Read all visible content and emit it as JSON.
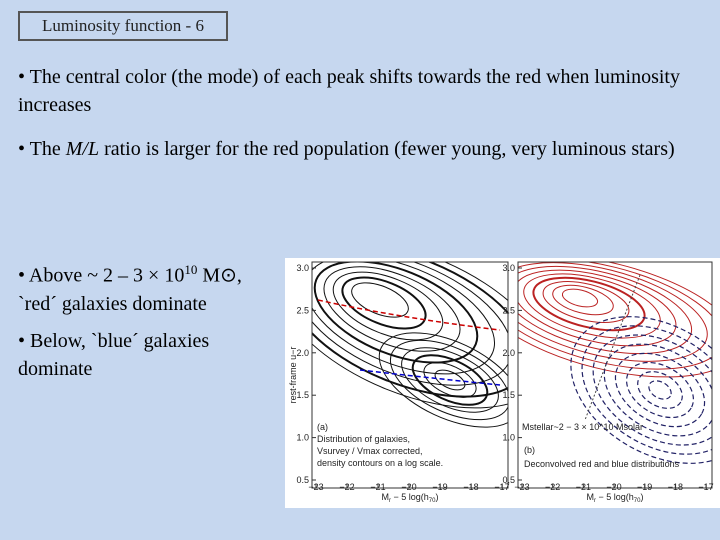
{
  "title": "Luminosity function - 6",
  "bullets": [
    {
      "text": "• The central color (the mode) of each peak shifts towards the red when luminosity increases"
    },
    {
      "before": "• The ",
      "italic": "M/L",
      "after": " ratio is larger for the red population (fewer young, very luminous stars)"
    },
    {
      "before": "• Above ~ 2 – 3 × 10",
      "sup": "10",
      "after": " M⊙,",
      "line2": "`red´ galaxies dominate"
    },
    {
      "text": "• Below, `blue´ galaxies dominate"
    }
  ],
  "figure": {
    "yticks": [
      "3.0",
      "2.5",
      "2.0",
      "1.5",
      "1.0",
      "0.5"
    ],
    "xticks": [
      "−23",
      "−22",
      "−21",
      "−20",
      "−19",
      "−18",
      "−17"
    ],
    "ylabel": "rest-frame u−r",
    "xlabel": {
      "m": "M",
      "sub": "r",
      "mid": " − 5 log(h",
      "h": "70",
      "end": ")"
    },
    "panel_a": {
      "tag": "(a)",
      "caption": [
        "Distribution of galaxies,",
        "Vsurvey / Vmax corrected,",
        "density contours on a log scale."
      ]
    },
    "panel_b": {
      "tag": "(b)",
      "caption": "Deconvolved red and blue distributions",
      "annotation": "Mstellar~2 − 3 × 10^10 Msolar"
    }
  }
}
